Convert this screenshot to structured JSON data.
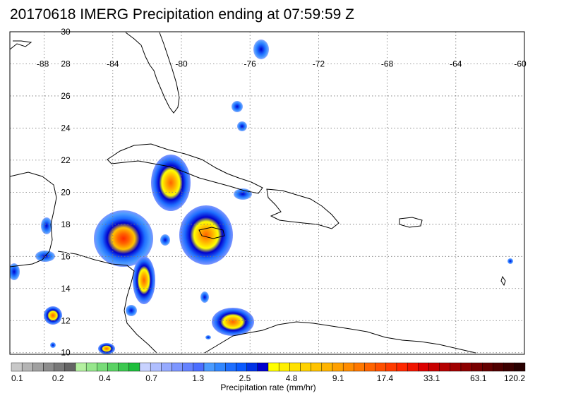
{
  "title": "20170618 IMERG Precipitation ending at 07:59:59 Z",
  "map": {
    "lat_labels": [
      "30",
      "28",
      "26",
      "24",
      "22",
      "20",
      "18",
      "16",
      "14",
      "12",
      "10"
    ],
    "lon_labels": [
      "-88",
      "-84",
      "-80",
      "-76",
      "-72",
      "-68",
      "-64",
      "-60"
    ],
    "lat_range": [
      9.9,
      30
    ],
    "lon_range": [
      -90,
      -60
    ]
  },
  "colorbar": {
    "title": "Precipitation rate (mm/hr)",
    "labels": [
      "0.1",
      "0.2",
      "0.4",
      "0.7",
      "1.3",
      "2.5",
      "4.8",
      "9.1",
      "17.4",
      "33.1",
      "63.1",
      "120.2"
    ],
    "colors": [
      "#c8c8c8",
      "#b4b4b4",
      "#a0a0a0",
      "#8c8c8c",
      "#787878",
      "#646464",
      "#b4f0a0",
      "#96e68c",
      "#78dc78",
      "#5ad264",
      "#3cc850",
      "#1ebe3c",
      "#c8d2ff",
      "#afbeff",
      "#96aaff",
      "#7d96ff",
      "#6482ff",
      "#4b6eff",
      "#4b9bff",
      "#3287ff",
      "#1e6eff",
      "#0a5aff",
      "#0032e6",
      "#0000cd",
      "#ffff00",
      "#fff000",
      "#ffe100",
      "#ffd200",
      "#ffc300",
      "#ffb400",
      "#ffa000",
      "#ff8c00",
      "#ff7800",
      "#ff6400",
      "#ff5000",
      "#ff3c00",
      "#ff2800",
      "#f01400",
      "#dc0000",
      "#c80000",
      "#b40000",
      "#a00000",
      "#8c0000",
      "#780000",
      "#640000",
      "#500000",
      "#3c0000",
      "#280000"
    ]
  }
}
